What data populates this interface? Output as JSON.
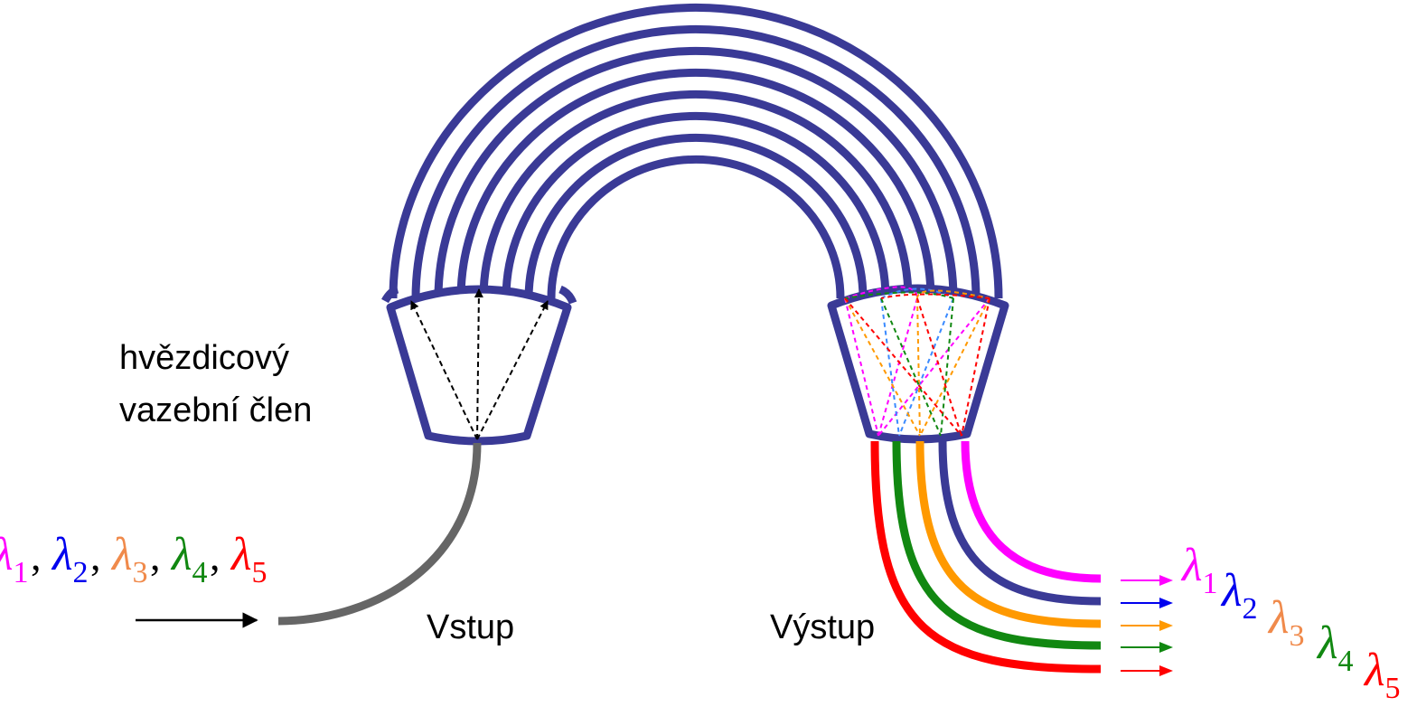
{
  "labels": {
    "coupler_line1": "hvězdicový",
    "coupler_line2": "vazební člen",
    "input": "Vstup",
    "output": "Výstup"
  },
  "wavelengths": [
    {
      "symbol": "λ",
      "sub": "1",
      "color": "#ff00ff"
    },
    {
      "symbol": "λ",
      "sub": "2",
      "color": "#0000ee"
    },
    {
      "symbol": "λ",
      "sub": "3",
      "color": "#f08a4b"
    },
    {
      "symbol": "λ",
      "sub": "4",
      "color": "#118811"
    },
    {
      "symbol": "λ",
      "sub": "5",
      "color": "#ff0000"
    }
  ],
  "separator": ",",
  "colors": {
    "fiber_bundle": "#3a3a96",
    "input_fiber": "#666666",
    "output_fibers": [
      "#ff00ff",
      "#3a3a96",
      "#ff9900",
      "#118811",
      "#ff0000"
    ],
    "arrow_colors": [
      "#ff00ff",
      "#0000ee",
      "#ff9900",
      "#118811",
      "#ff0000"
    ]
  }
}
